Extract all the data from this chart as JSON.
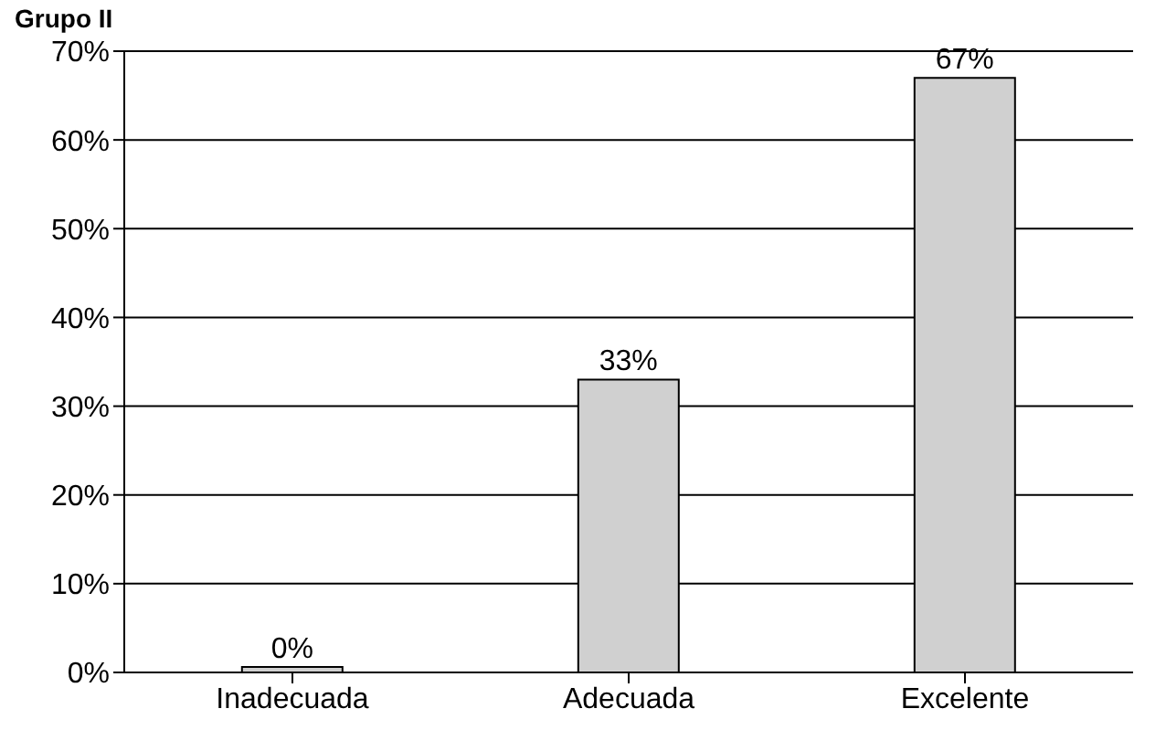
{
  "chart_data": {
    "type": "bar",
    "title": "Grupo II",
    "categories": [
      "Inadecuada",
      "Adecuada",
      "Excelente"
    ],
    "values": [
      0,
      33,
      67
    ],
    "color": "#d0d0d0",
    "value_labels": [
      "0%",
      "33%",
      "67%"
    ],
    "ylim": [
      0,
      70
    ],
    "yticks": [
      {
        "value": 0,
        "label": "0%"
      },
      {
        "value": 10,
        "label": "10%"
      },
      {
        "value": 20,
        "label": "20%"
      },
      {
        "value": 30,
        "label": "30%"
      },
      {
        "value": 40,
        "label": "40%"
      },
      {
        "value": 50,
        "label": "50%"
      },
      {
        "value": 60,
        "label": "60%"
      },
      {
        "value": 70,
        "label": "70%"
      }
    ],
    "grid": "y"
  }
}
